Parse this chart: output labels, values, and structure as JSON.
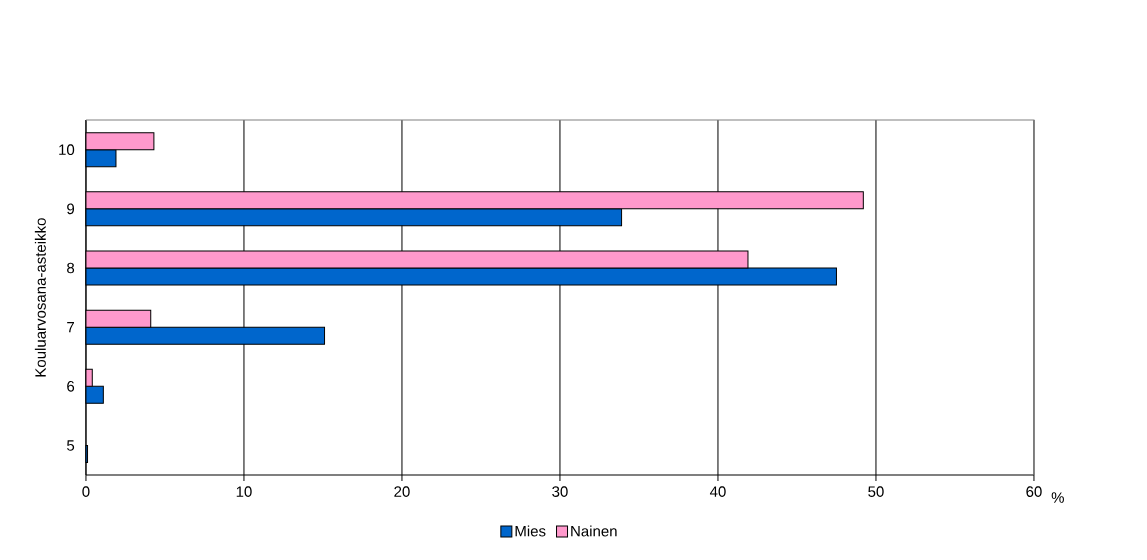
{
  "chart_data": {
    "type": "bar",
    "orientation": "horizontal",
    "categories": [
      "10",
      "9",
      "8",
      "7",
      "6",
      "5"
    ],
    "ylabel": "Kouluarvosana-asteikko",
    "xlabel": "%",
    "xlim": [
      0,
      60
    ],
    "xticks": [
      0,
      10,
      20,
      30,
      40,
      50,
      60
    ],
    "grid": "x",
    "legend": "bottom",
    "series": [
      {
        "name": "Mies",
        "color": "#0066cc",
        "values": [
          1.9,
          33.9,
          47.5,
          15.1,
          1.1,
          0.1
        ]
      },
      {
        "name": "Nainen",
        "color": "#ff99cc",
        "values": [
          4.3,
          49.2,
          41.9,
          4.1,
          0.4,
          null
        ]
      }
    ]
  }
}
